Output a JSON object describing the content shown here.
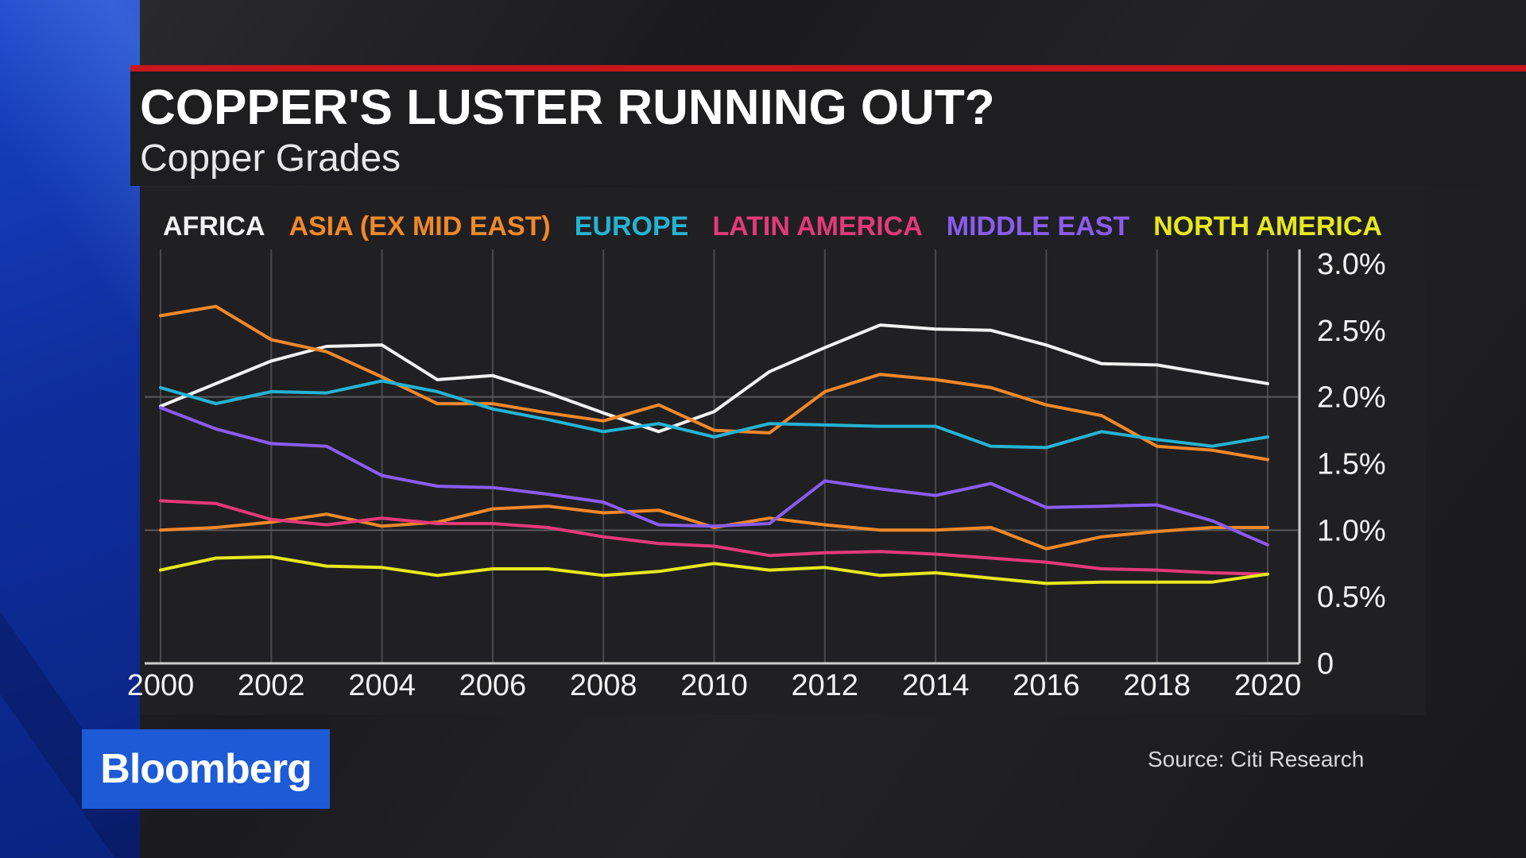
{
  "header": {
    "title": "COPPER'S LUSTER RUNNING OUT?",
    "subtitle": "Copper Grades"
  },
  "source": "Source: Citi Research",
  "logo": "Bloomberg",
  "colors": {
    "accent_red": "#c8171c",
    "brand_blue": "#1d5ad6"
  },
  "chart_data": {
    "type": "line",
    "title": "Copper Grades",
    "xlabel": "",
    "ylabel": "",
    "xlim": [
      2000,
      2020
    ],
    "ylim": [
      0,
      3.0
    ],
    "x_ticks": [
      "2000",
      "2002",
      "2004",
      "2006",
      "2008",
      "2010",
      "2012",
      "2014",
      "2016",
      "2018",
      "2020"
    ],
    "y_ticks": [
      {
        "value": 0,
        "label": "0"
      },
      {
        "value": 0.5,
        "label": "0.5%"
      },
      {
        "value": 1.0,
        "label": "1.0%"
      },
      {
        "value": 1.5,
        "label": "1.5%"
      },
      {
        "value": 2.0,
        "label": "2.0%"
      },
      {
        "value": 2.5,
        "label": "2.5%"
      },
      {
        "value": 3.0,
        "label": "3.0%"
      }
    ],
    "series": [
      {
        "name": "AFRICA",
        "color": "#f2f2f2",
        "x": [
          2000,
          2001,
          2002,
          2003,
          2004,
          2005,
          2006,
          2007,
          2008,
          2009,
          2010,
          2011,
          2012,
          2013,
          2014,
          2015,
          2016,
          2017,
          2018,
          2019,
          2020
        ],
        "y": [
          1.93,
          2.1,
          2.27,
          2.38,
          2.39,
          2.13,
          2.16,
          2.03,
          1.88,
          1.74,
          1.89,
          2.19,
          2.37,
          2.54,
          2.51,
          2.5,
          2.39,
          2.25,
          2.24,
          2.17,
          2.1
        ]
      },
      {
        "name": "ASIA (EX MID EAST)",
        "color": "#f0882a",
        "x": [
          2000,
          2001,
          2002,
          2003,
          2004,
          2005,
          2006,
          2007,
          2008,
          2009,
          2010,
          2011,
          2012,
          2013,
          2014,
          2015,
          2016,
          2017,
          2018,
          2019,
          2020
        ],
        "y": [
          2.61,
          2.68,
          2.43,
          2.34,
          2.15,
          1.95,
          1.95,
          1.88,
          1.82,
          1.94,
          1.75,
          1.73,
          2.04,
          2.17,
          2.13,
          2.07,
          1.94,
          1.86,
          1.63,
          1.6,
          1.53
        ]
      },
      {
        "name": "ASIA (EX MID EAST)",
        "color": "#f0882a",
        "x": [
          2000,
          2001,
          2002,
          2003,
          2004,
          2005,
          2006,
          2007,
          2008,
          2009,
          2010,
          2011,
          2012,
          2013,
          2014,
          2015,
          2016,
          2017,
          2018,
          2019,
          2020
        ],
        "y": [
          1.0,
          1.02,
          1.06,
          1.12,
          1.03,
          1.06,
          1.16,
          1.18,
          1.13,
          1.15,
          1.02,
          1.09,
          1.04,
          1.0,
          1.0,
          1.02,
          0.86,
          0.95,
          0.99,
          1.02,
          1.02
        ]
      },
      {
        "name": "EUROPE",
        "color": "#25b3d3",
        "x": [
          2000,
          2001,
          2002,
          2003,
          2004,
          2005,
          2006,
          2007,
          2008,
          2009,
          2010,
          2011,
          2012,
          2013,
          2014,
          2015,
          2016,
          2017,
          2018,
          2019,
          2020
        ],
        "y": [
          2.07,
          1.95,
          2.04,
          2.03,
          2.12,
          2.04,
          1.91,
          1.83,
          1.74,
          1.8,
          1.7,
          1.8,
          1.79,
          1.78,
          1.78,
          1.63,
          1.62,
          1.74,
          1.68,
          1.63,
          1.7
        ]
      },
      {
        "name": "LATIN AMERICA",
        "color": "#e33a78",
        "x": [
          2000,
          2001,
          2002,
          2003,
          2004,
          2005,
          2006,
          2007,
          2008,
          2009,
          2010,
          2011,
          2012,
          2013,
          2014,
          2015,
          2016,
          2017,
          2018,
          2019,
          2020
        ],
        "y": [
          1.22,
          1.2,
          1.08,
          1.04,
          1.09,
          1.05,
          1.05,
          1.02,
          0.95,
          0.9,
          0.88,
          0.81,
          0.83,
          0.84,
          0.82,
          0.79,
          0.76,
          0.71,
          0.7,
          0.68,
          0.67
        ]
      },
      {
        "name": "MIDDLE EAST",
        "color": "#8a5cf0",
        "x": [
          2000,
          2001,
          2002,
          2003,
          2004,
          2005,
          2006,
          2007,
          2008,
          2009,
          2010,
          2011,
          2012,
          2013,
          2014,
          2015,
          2016,
          2017,
          2018,
          2019,
          2020
        ],
        "y": [
          1.92,
          1.76,
          1.65,
          1.63,
          1.41,
          1.33,
          1.32,
          1.27,
          1.21,
          1.04,
          1.03,
          1.05,
          1.37,
          1.31,
          1.26,
          1.35,
          1.17,
          1.18,
          1.19,
          1.07,
          0.89
        ]
      },
      {
        "name": "NORTH AMERICA",
        "color": "#e7e81e",
        "x": [
          2000,
          2001,
          2002,
          2003,
          2004,
          2005,
          2006,
          2007,
          2008,
          2009,
          2010,
          2011,
          2012,
          2013,
          2014,
          2015,
          2016,
          2017,
          2018,
          2019,
          2020
        ],
        "y": [
          0.7,
          0.79,
          0.8,
          0.73,
          0.72,
          0.66,
          0.71,
          0.71,
          0.66,
          0.69,
          0.75,
          0.7,
          0.72,
          0.66,
          0.68,
          0.64,
          0.6,
          0.61,
          0.61,
          0.61,
          0.67
        ]
      }
    ],
    "legend": [
      {
        "label": "AFRICA",
        "color": "#f2f2f2"
      },
      {
        "label": "ASIA (EX MID EAST)",
        "color": "#f0882a"
      },
      {
        "label": "EUROPE",
        "color": "#25b3d3"
      },
      {
        "label": "LATIN AMERICA",
        "color": "#e33a78"
      },
      {
        "label": "MIDDLE EAST",
        "color": "#8a5cf0"
      },
      {
        "label": "NORTH AMERICA",
        "color": "#e7e81e"
      }
    ],
    "legend_position": "top",
    "grid": true
  }
}
